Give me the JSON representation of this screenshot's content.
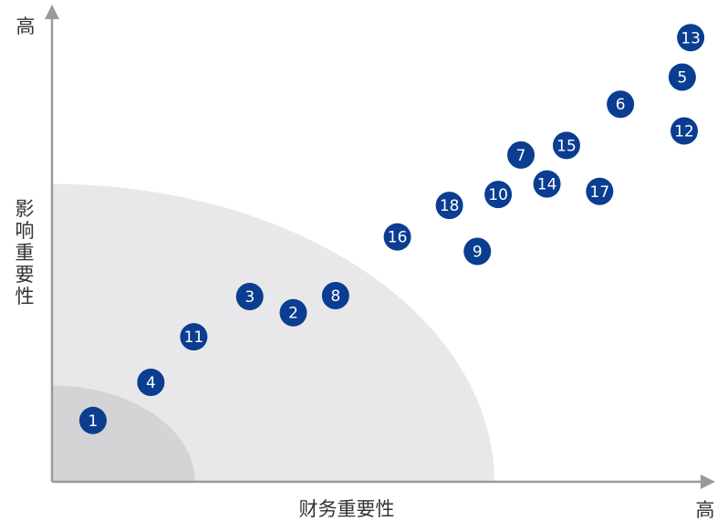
{
  "chart_data": {
    "type": "scatter",
    "xlabel": "财务重要性",
    "ylabel": "影响重要性",
    "x_high_label": "高",
    "y_high_label": "高",
    "xlim": [
      0,
      100
    ],
    "ylim": [
      0,
      100
    ],
    "grid": false,
    "legend": "none",
    "colors": {
      "point": "#0b3d91",
      "outer_zone": "#e8e8ea",
      "inner_zone": "#d4d4d6",
      "axis": "#9a9a9a"
    },
    "zones": [
      {
        "name": "outer",
        "radius": 68
      },
      {
        "name": "inner",
        "radius": 22
      }
    ],
    "points": [
      {
        "label": "1",
        "x": 6.3,
        "y": 14
      },
      {
        "label": "2",
        "x": 37.1,
        "y": 38.6
      },
      {
        "label": "3",
        "x": 30.4,
        "y": 42.3
      },
      {
        "label": "4",
        "x": 15.2,
        "y": 22.7
      },
      {
        "label": "5",
        "x": 96.9,
        "y": 92.4
      },
      {
        "label": "6",
        "x": 87.4,
        "y": 86.2
      },
      {
        "label": "7",
        "x": 72.1,
        "y": 74.6
      },
      {
        "label": "8",
        "x": 43.6,
        "y": 42.5
      },
      {
        "label": "9",
        "x": 65.4,
        "y": 52.6
      },
      {
        "label": "10",
        "x": 68.6,
        "y": 65.6
      },
      {
        "label": "11",
        "x": 21.8,
        "y": 33.1
      },
      {
        "label": "12",
        "x": 97.2,
        "y": 80.1
      },
      {
        "label": "13",
        "x": 98.2,
        "y": 101.4
      },
      {
        "label": "14",
        "x": 76.1,
        "y": 68
      },
      {
        "label": "15",
        "x": 79.1,
        "y": 76.8
      },
      {
        "label": "16",
        "x": 53.1,
        "y": 55.9
      },
      {
        "label": "17",
        "x": 84.2,
        "y": 66.3
      },
      {
        "label": "18",
        "x": 61.1,
        "y": 63.1
      }
    ]
  }
}
